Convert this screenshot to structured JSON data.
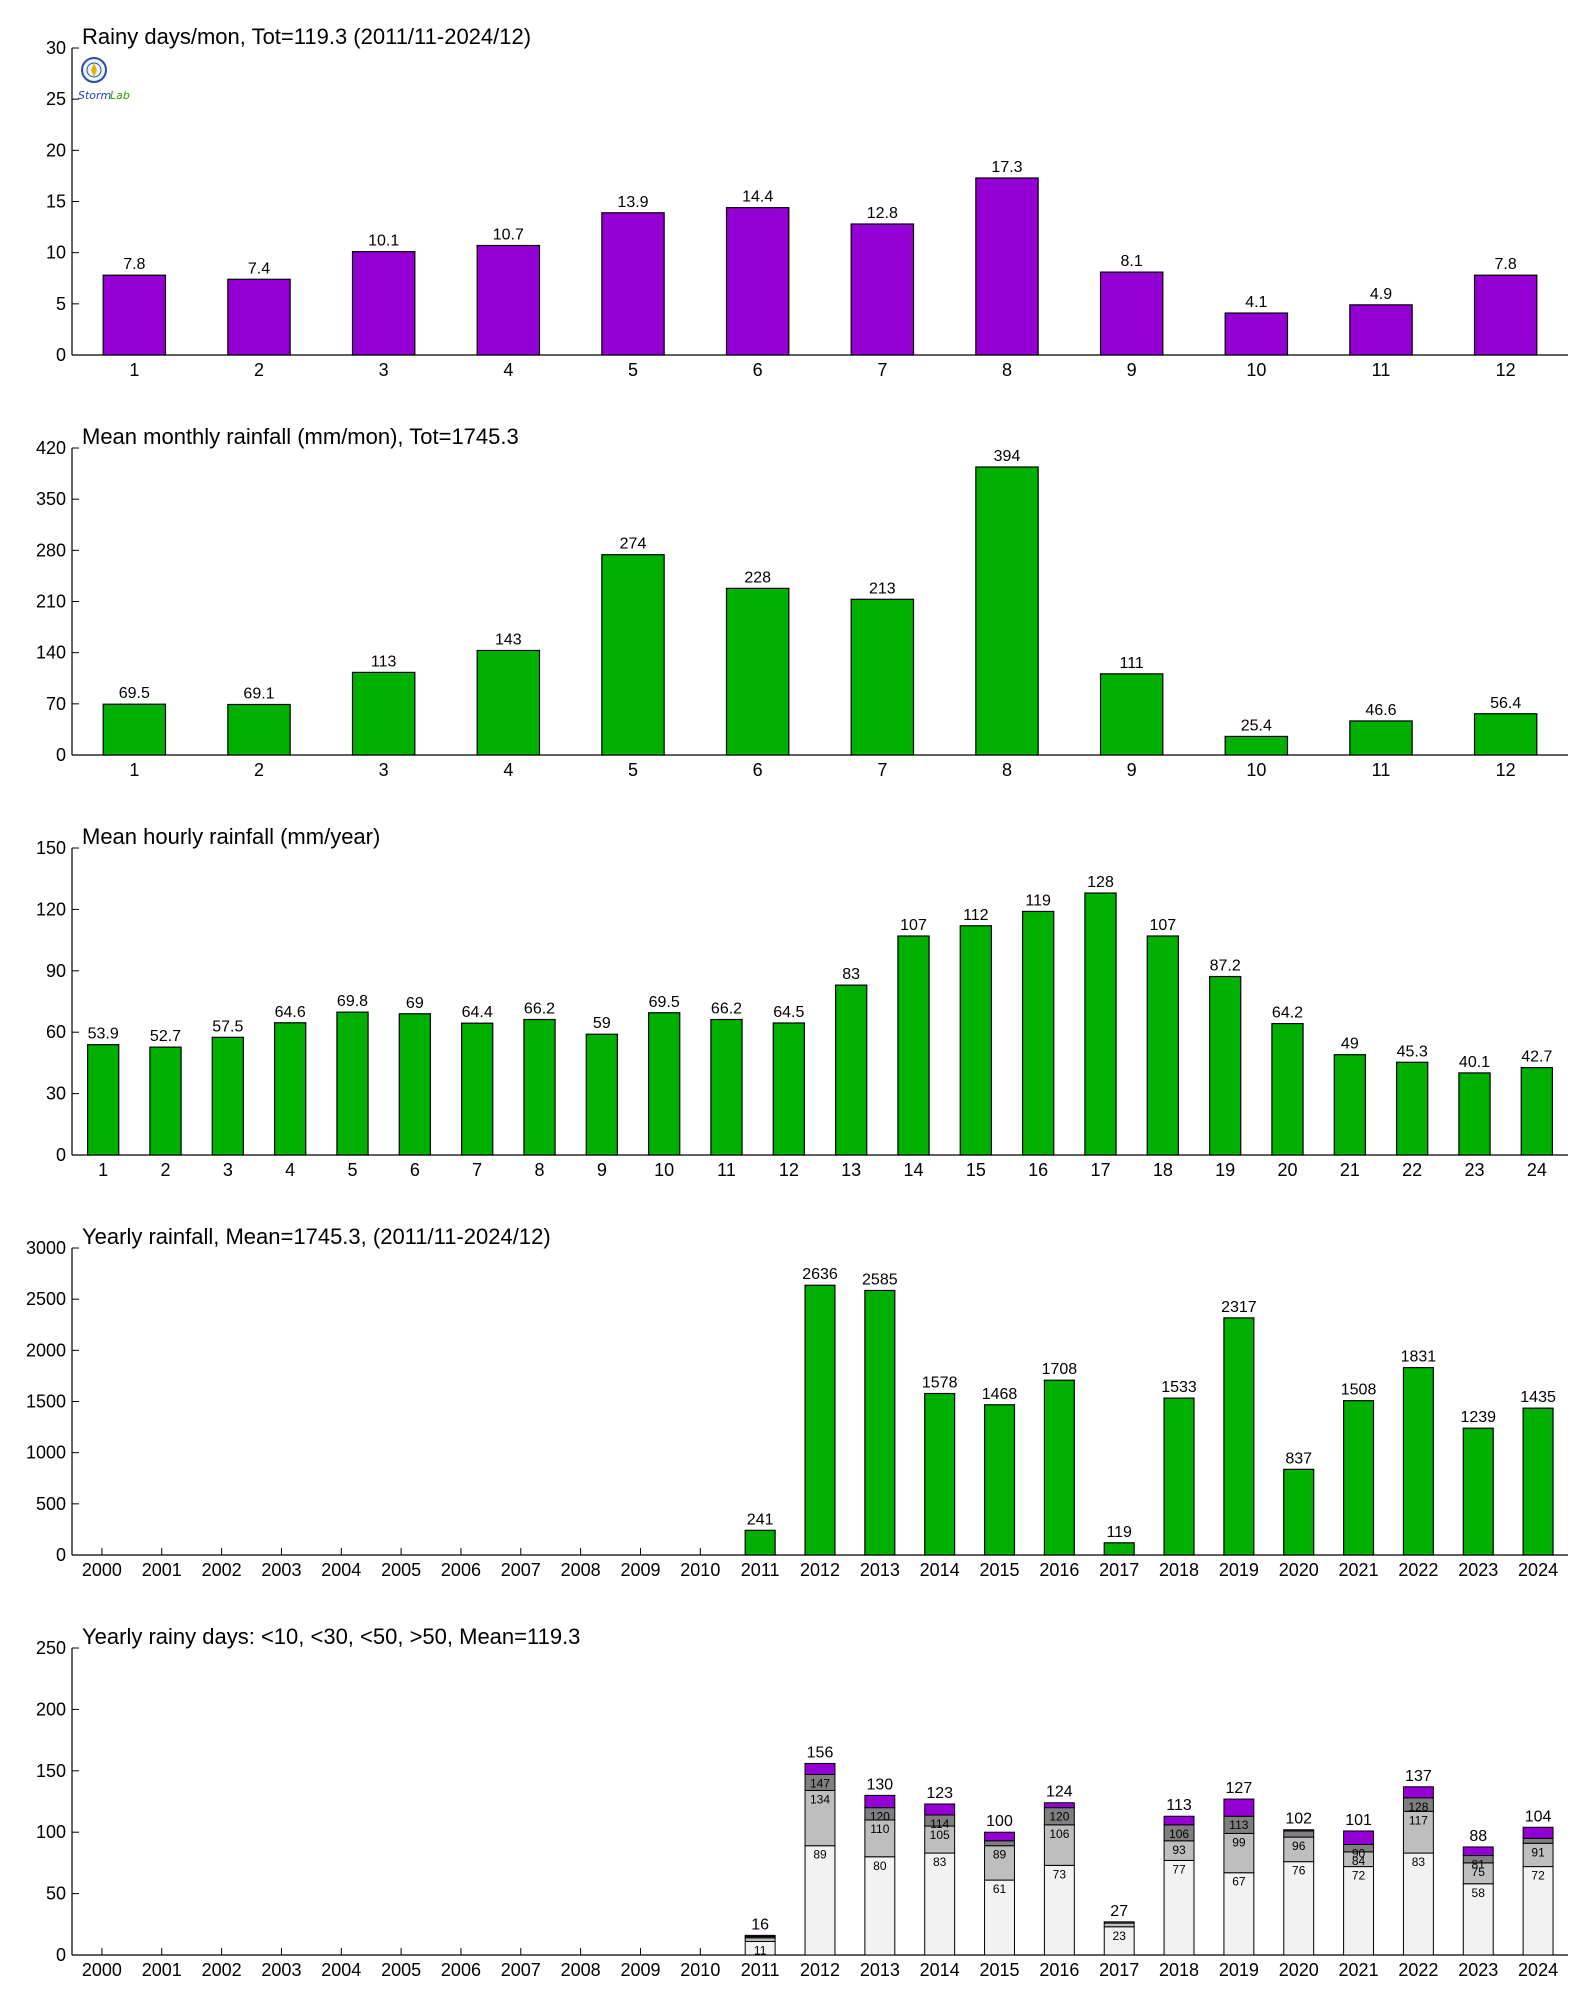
{
  "logo_text": "StormLab",
  "colors": {
    "purple": "#9400D3",
    "green": "#00B000",
    "stack_lt10": "#F2F2F2",
    "stack_lt30": "#BEBEBE",
    "stack_lt50": "#7F7F7F",
    "stack_gt50": "#9400D3"
  },
  "chart_data": [
    {
      "type": "bar",
      "title": "Rainy days/mon, Tot=119.3 (2011/11-2024/12)",
      "categories": [
        "1",
        "2",
        "3",
        "4",
        "5",
        "6",
        "7",
        "8",
        "9",
        "10",
        "11",
        "12"
      ],
      "values": [
        7.8,
        7.4,
        10.1,
        10.7,
        13.9,
        14.4,
        12.8,
        17.3,
        8.1,
        4.1,
        4.9,
        7.8
      ],
      "value_labels": [
        "7.8",
        "7.4",
        "10.1",
        "10.7",
        "13.9",
        "14.4",
        "12.8",
        "17.3",
        "8.1",
        "4.1",
        "4.9",
        "7.8"
      ],
      "ylim": [
        0,
        30
      ],
      "yticks": [
        0,
        5,
        10,
        15,
        20,
        25,
        30
      ],
      "color": "#9400D3",
      "has_logo": true
    },
    {
      "type": "bar",
      "title": "Mean monthly rainfall (mm/mon), Tot=1745.3",
      "categories": [
        "1",
        "2",
        "3",
        "4",
        "5",
        "6",
        "7",
        "8",
        "9",
        "10",
        "11",
        "12"
      ],
      "values": [
        69.5,
        69.1,
        113,
        143,
        274,
        228,
        213,
        394,
        111,
        25.4,
        46.6,
        56.4
      ],
      "value_labels": [
        "69.5",
        "69.1",
        "113",
        "143",
        "274",
        "228",
        "213",
        "394",
        "111",
        "25.4",
        "46.6",
        "56.4"
      ],
      "ylim": [
        0,
        420
      ],
      "yticks": [
        0,
        70,
        140,
        210,
        280,
        350,
        420
      ],
      "color": "#00B000"
    },
    {
      "type": "bar",
      "title": "Mean hourly rainfall (mm/year)",
      "categories": [
        "1",
        "2",
        "3",
        "4",
        "5",
        "6",
        "7",
        "8",
        "9",
        "10",
        "11",
        "12",
        "13",
        "14",
        "15",
        "16",
        "17",
        "18",
        "19",
        "20",
        "21",
        "22",
        "23",
        "24"
      ],
      "values": [
        53.9,
        52.7,
        57.5,
        64.6,
        69.8,
        69,
        64.4,
        66.2,
        59,
        69.5,
        66.2,
        64.5,
        83,
        107,
        112,
        119,
        128,
        107,
        87.2,
        64.2,
        49,
        45.3,
        40.1,
        42.7
      ],
      "value_labels": [
        "53.9",
        "52.7",
        "57.5",
        "64.6",
        "69.8",
        "69",
        "64.4",
        "66.2",
        "59",
        "69.5",
        "66.2",
        "64.5",
        "83",
        "107",
        "112",
        "119",
        "128",
        "107",
        "87.2",
        "64.2",
        "49",
        "45.3",
        "40.1",
        "42.7"
      ],
      "ylim": [
        0,
        150
      ],
      "yticks": [
        0,
        30,
        60,
        90,
        120,
        150
      ],
      "color": "#00B000"
    },
    {
      "type": "bar",
      "title": "Yearly rainfall, Mean=1745.3, (2011/11-2024/12)",
      "categories": [
        "2000",
        "2001",
        "2002",
        "2003",
        "2004",
        "2005",
        "2006",
        "2007",
        "2008",
        "2009",
        "2010",
        "2011",
        "2012",
        "2013",
        "2014",
        "2015",
        "2016",
        "2017",
        "2018",
        "2019",
        "2020",
        "2021",
        "2022",
        "2023",
        "2024"
      ],
      "values": [
        null,
        null,
        null,
        null,
        null,
        null,
        null,
        null,
        null,
        null,
        null,
        241,
        2636,
        2585,
        1578,
        1468,
        1708,
        119,
        1533,
        2317,
        837,
        1508,
        1831,
        1239,
        1435
      ],
      "value_labels": [
        "",
        "",
        "",
        "",
        "",
        "",
        "",
        "",
        "",
        "",
        "",
        "241",
        "2636",
        "2585",
        "1578",
        "1468",
        "1708",
        "119",
        "1533",
        "2317",
        "837",
        "1508",
        "1831",
        "1239",
        "1435"
      ],
      "ylim": [
        0,
        3000
      ],
      "yticks": [
        0,
        500,
        1000,
        1500,
        2000,
        2500,
        3000
      ],
      "color": "#00B000"
    },
    {
      "type": "bar",
      "stacked": true,
      "title": "Yearly rainy days: <10, <30, <50, >50, Mean=119.3",
      "categories": [
        "2000",
        "2001",
        "2002",
        "2003",
        "2004",
        "2005",
        "2006",
        "2007",
        "2008",
        "2009",
        "2010",
        "2011",
        "2012",
        "2013",
        "2014",
        "2015",
        "2016",
        "2017",
        "2018",
        "2019",
        "2020",
        "2021",
        "2022",
        "2023",
        "2024"
      ],
      "cumulative_values": [
        null,
        null,
        null,
        null,
        null,
        null,
        null,
        null,
        null,
        null,
        null,
        [
          11,
          14,
          15,
          16
        ],
        [
          89,
          134,
          147,
          156
        ],
        [
          80,
          110,
          120,
          130
        ],
        [
          83,
          105,
          114,
          123
        ],
        [
          61,
          89,
          93,
          100
        ],
        [
          73,
          106,
          120,
          124
        ],
        [
          23,
          26,
          27,
          27
        ],
        [
          77,
          93,
          106,
          113
        ],
        [
          67,
          99,
          113,
          127
        ],
        [
          76,
          96,
          101,
          102
        ],
        [
          72,
          84,
          90,
          101
        ],
        [
          83,
          117,
          128,
          137
        ],
        [
          58,
          75,
          81,
          88
        ],
        [
          72,
          91,
          95,
          104
        ]
      ],
      "segment_labels": [
        null,
        null,
        null,
        null,
        null,
        null,
        null,
        null,
        null,
        null,
        null,
        [
          "11",
          "",
          "",
          ""
        ],
        [
          "89",
          "134",
          "147",
          ""
        ],
        [
          "80",
          "110",
          "120",
          ""
        ],
        [
          "83",
          "105",
          "114",
          ""
        ],
        [
          "61",
          "89",
          "",
          ""
        ],
        [
          "73",
          "106",
          "120",
          ""
        ],
        [
          "23",
          "",
          "",
          ""
        ],
        [
          "77",
          "93",
          "106",
          ""
        ],
        [
          "67",
          "99",
          "113",
          ""
        ],
        [
          "76",
          "96",
          "",
          ""
        ],
        [
          "72",
          "84",
          "90",
          ""
        ],
        [
          "83",
          "117",
          "128",
          ""
        ],
        [
          "58",
          "75",
          "81",
          ""
        ],
        [
          "72",
          "91",
          "",
          ""
        ]
      ],
      "total_labels": [
        "",
        "",
        "",
        "",
        "",
        "",
        "",
        "",
        "",
        "",
        "",
        "16",
        "156",
        "130",
        "123",
        "100",
        "124",
        "27",
        "113",
        "127",
        "102",
        "101",
        "137",
        "88",
        "104"
      ],
      "ylim": [
        0,
        250
      ],
      "yticks": [
        0,
        50,
        100,
        150,
        200,
        250
      ],
      "colors": [
        "#F2F2F2",
        "#BEBEBE",
        "#7F7F7F",
        "#9400D3"
      ]
    }
  ]
}
